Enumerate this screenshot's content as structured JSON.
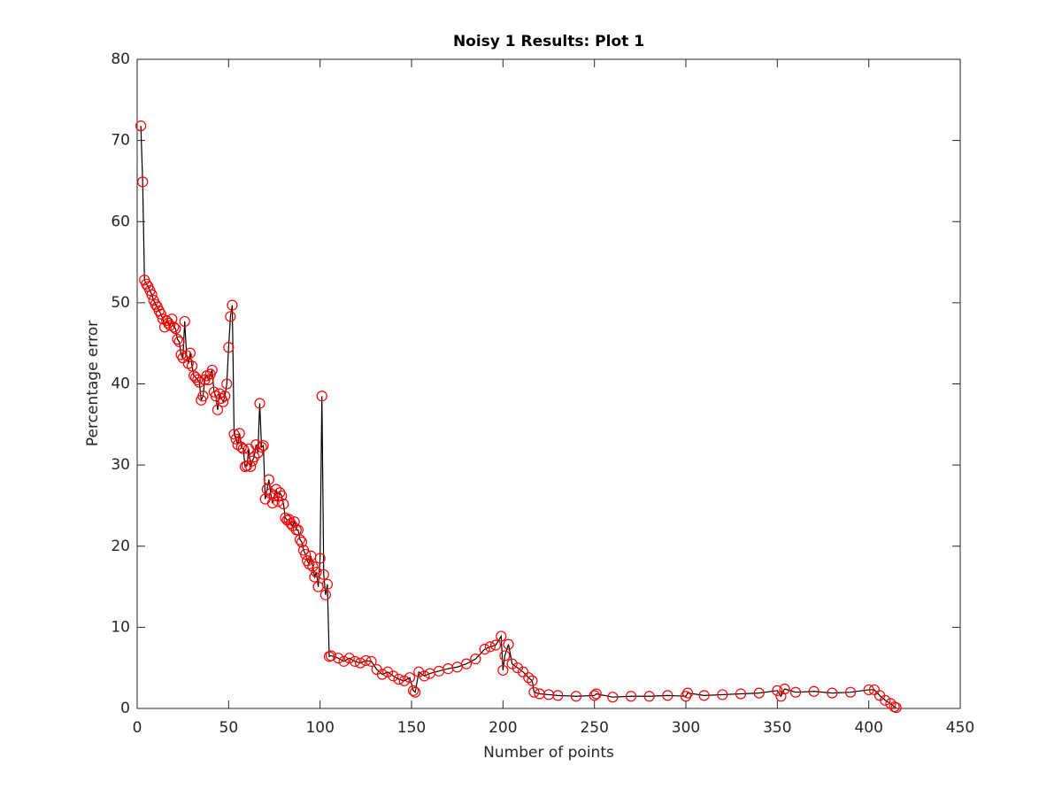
{
  "chart_data": {
    "type": "line",
    "title": "Noisy 1 Results: Plot 1",
    "xlabel": "Number of points",
    "ylabel": "Percentage error",
    "xlim": [
      0,
      450
    ],
    "xticks": [
      0,
      50,
      100,
      150,
      200,
      250,
      300,
      350,
      400,
      450
    ],
    "ylim": [
      0,
      80
    ],
    "yticks": [
      0,
      10,
      20,
      30,
      40,
      50,
      60,
      70,
      80
    ],
    "grid": false,
    "series": [
      {
        "color": "#000000",
        "marker_color": "#ff0000",
        "x": [
          2,
          3,
          4,
          5,
          6,
          7,
          8,
          9,
          10,
          11,
          12,
          13,
          14,
          15,
          16,
          17,
          18,
          19,
          20,
          21,
          22,
          23,
          24,
          25,
          26,
          27,
          28,
          29,
          30,
          31,
          32,
          33,
          34,
          35,
          36,
          37,
          38,
          39,
          40,
          41,
          42,
          43,
          44,
          45,
          46,
          47,
          48,
          49,
          50,
          51,
          52,
          53,
          54,
          55,
          56,
          57,
          58,
          59,
          60,
          61,
          62,
          63,
          64,
          65,
          66,
          67,
          68,
          69,
          70,
          71,
          72,
          73,
          74,
          75,
          76,
          77,
          78,
          79,
          80,
          81,
          82,
          83,
          84,
          85,
          86,
          87,
          88,
          89,
          90,
          91,
          92,
          93,
          94,
          95,
          96,
          97,
          98,
          99,
          100,
          101,
          102,
          103,
          104,
          105,
          106,
          110,
          113,
          116,
          119,
          122,
          125,
          128,
          131,
          134,
          137,
          140,
          143,
          146,
          149,
          151,
          152,
          154,
          157,
          160,
          165,
          170,
          175,
          180,
          185,
          190,
          193,
          196,
          199,
          200,
          201,
          203,
          205,
          208,
          211,
          214,
          216,
          217,
          220,
          225,
          230,
          240,
          250,
          251,
          260,
          270,
          280,
          290,
          300,
          301,
          310,
          320,
          330,
          340,
          350,
          352,
          354,
          360,
          370,
          380,
          390,
          400,
          403,
          406,
          409,
          412,
          414,
          415
        ],
        "values": [
          71.8,
          64.9,
          52.8,
          52.3,
          52.0,
          51.5,
          51.0,
          50.3,
          49.8,
          49.5,
          49.0,
          48.6,
          48.0,
          47.0,
          47.8,
          47.5,
          47.2,
          48.0,
          47.0,
          46.8,
          45.5,
          45.2,
          43.6,
          43.2,
          47.7,
          43.5,
          42.5,
          43.8,
          42.2,
          41.0,
          40.8,
          40.5,
          40.2,
          38.0,
          38.5,
          40.5,
          41.0,
          40.5,
          41.2,
          41.7,
          39.0,
          38.5,
          36.8,
          38.8,
          38.2,
          37.8,
          38.5,
          40.0,
          44.5,
          48.3,
          49.7,
          33.8,
          33.2,
          32.5,
          33.9,
          32.2,
          32.0,
          29.8,
          29.9,
          32.0,
          29.8,
          30.5,
          31.0,
          32.5,
          31.5,
          37.6,
          32.2,
          32.4,
          25.8,
          27.0,
          28.2,
          26.5,
          25.3,
          26.2,
          27.0,
          25.5,
          26.6,
          26.2,
          25.2,
          23.5,
          23.2,
          23.3,
          22.8,
          22.5,
          23.0,
          22.0,
          22.0,
          20.8,
          20.5,
          19.5,
          19.0,
          18.2,
          17.8,
          18.8,
          17.5,
          16.2,
          16.8,
          15.0,
          18.5,
          38.5,
          16.5,
          14.0,
          15.3,
          6.4,
          6.5,
          6.2,
          5.8,
          6.2,
          5.8,
          5.6,
          5.9,
          5.8,
          4.8,
          4.2,
          4.5,
          4.0,
          3.6,
          3.4,
          3.8,
          2.2,
          2.0,
          4.5,
          4.0,
          4.3,
          4.6,
          4.9,
          5.1,
          5.5,
          6.1,
          7.3,
          7.6,
          7.8,
          8.9,
          4.7,
          6.5,
          7.9,
          5.5,
          5.0,
          4.5,
          3.8,
          3.4,
          2.0,
          1.8,
          1.7,
          1.6,
          1.5,
          1.6,
          1.8,
          1.4,
          1.5,
          1.5,
          1.6,
          1.5,
          1.9,
          1.6,
          1.7,
          1.8,
          1.9,
          2.2,
          1.5,
          2.4,
          2.0,
          2.1,
          1.9,
          2.0,
          2.3,
          2.3,
          1.6,
          1.0,
          0.6,
          0.2,
          0.1
        ]
      }
    ]
  }
}
